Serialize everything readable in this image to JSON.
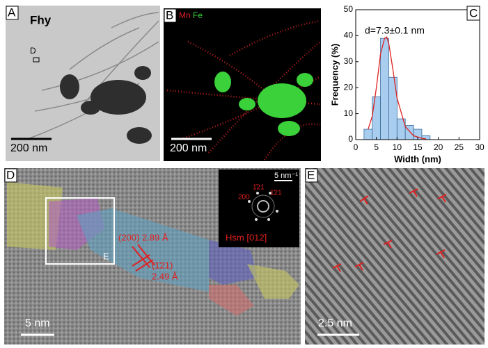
{
  "panels": {
    "a": {
      "label": "A",
      "title": "Fhy",
      "marker": "D",
      "scale_bar": "200 nm"
    },
    "b": {
      "label": "B",
      "legend": [
        "Mn",
        "Fe"
      ],
      "scale_bar": "200 nm"
    },
    "d": {
      "label": "D",
      "box_label": "E",
      "scale_bar": "5 nm",
      "annotations": [
        "(200) 2.89 Å",
        "(1̄21)",
        "2.49 Å"
      ],
      "inset": {
        "scale_bar": "5 nm⁻¹",
        "spots": [
          "1̄21",
          "200",
          "1̄21"
        ],
        "zone_axis": "Hsm [012]"
      }
    },
    "e": {
      "label": "E",
      "scale_bar": "2.5 nm"
    }
  },
  "chart_data": {
    "type": "histogram",
    "panel_label": "C",
    "annotation": "d=7.3±0.1 nm",
    "xlabel": "Width (nm)",
    "ylabel": "Frequency (%)",
    "bins": [
      2,
      4,
      6,
      8,
      10,
      12,
      14,
      16,
      18
    ],
    "values": [
      4,
      16.5,
      39,
      24,
      8,
      5.5,
      4,
      1.5
    ],
    "color": "#a8cdee",
    "edge_color": "#3a6a9a",
    "fit": {
      "x": [
        3,
        4,
        5,
        6,
        7,
        7.5,
        8,
        9,
        10,
        12,
        14,
        16,
        17
      ],
      "values": [
        4,
        9,
        20,
        33,
        39,
        39.5,
        37,
        27,
        16,
        5,
        1.5,
        0.5,
        0.3
      ],
      "color": "#e02020"
    },
    "xlim": [
      0,
      30
    ],
    "xticks": [
      0,
      5,
      10,
      15,
      20,
      25,
      30
    ],
    "ylim": [
      0,
      50
    ],
    "yticks": [
      0,
      10,
      20,
      30,
      40,
      50
    ]
  }
}
